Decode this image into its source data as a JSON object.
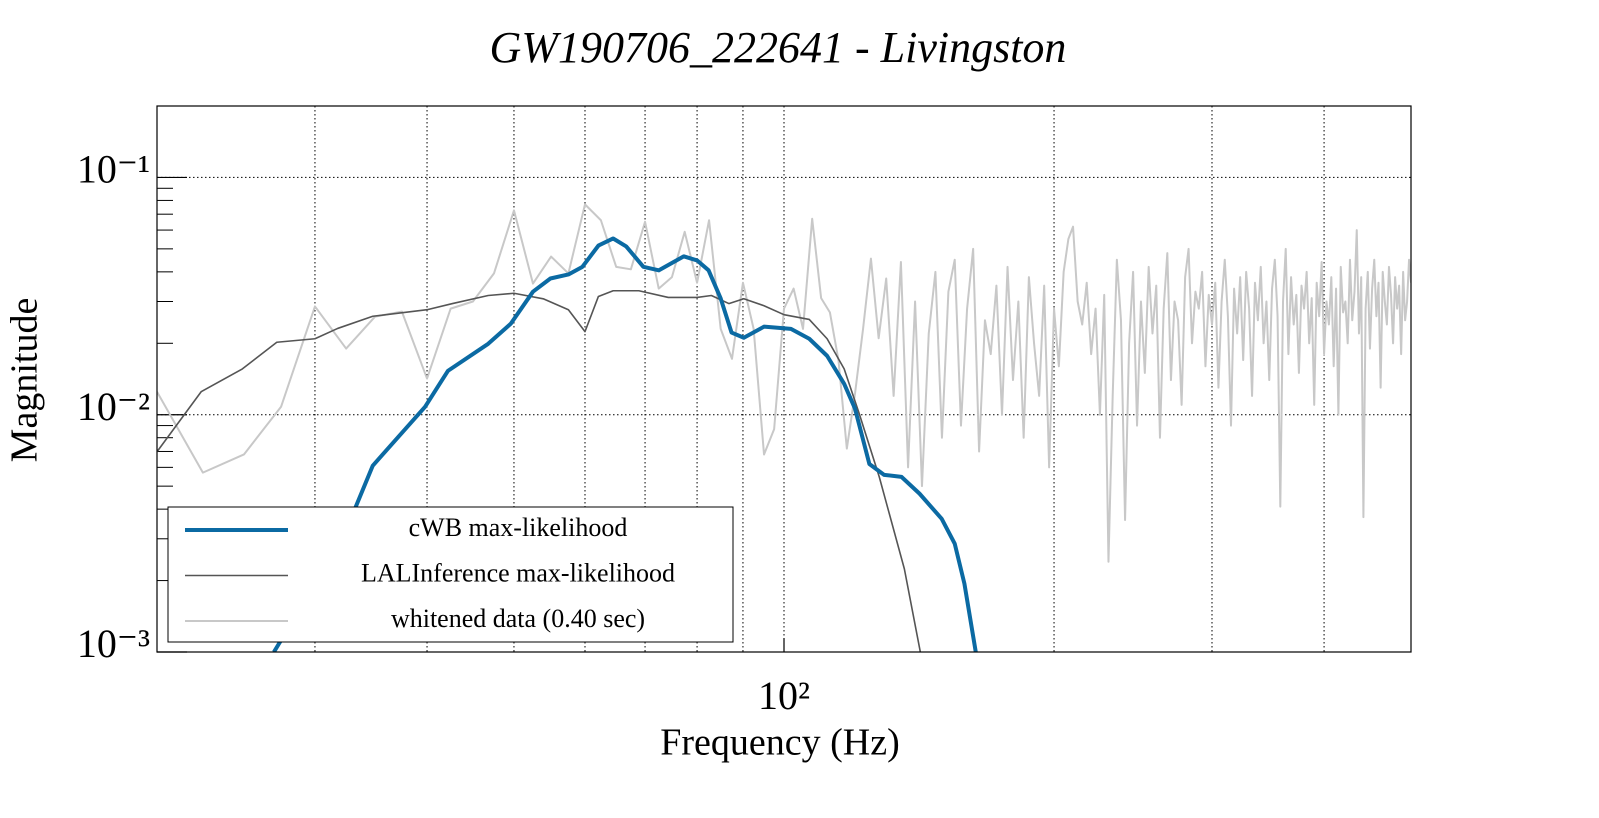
{
  "chart_data": {
    "type": "line",
    "title": "GW190706_222641 - Livingston",
    "xlabel": "Frequency (Hz)",
    "ylabel": "Magnitude",
    "xscale": "log",
    "yscale": "log",
    "xlim": [
      20,
      500
    ],
    "ylim": [
      0.001,
      0.2
    ],
    "xticks": [
      {
        "value": 100,
        "label": "10²"
      }
    ],
    "yticks": [
      {
        "value": 0.001,
        "label": "10⁻³"
      },
      {
        "value": 0.01,
        "label": "10⁻²"
      },
      {
        "value": 0.1,
        "label": "10⁻¹"
      }
    ],
    "xminor": [
      30,
      40,
      50,
      60,
      70,
      80,
      90,
      200,
      300,
      400
    ],
    "yminor": [
      0.002,
      0.003,
      0.004,
      0.005,
      0.006,
      0.007,
      0.008,
      0.009,
      0.02,
      0.03,
      0.04,
      0.05,
      0.06,
      0.07,
      0.08,
      0.09,
      0.2
    ],
    "grid": true,
    "legend": "lower left",
    "series": [
      {
        "name": "cWB max-likelihood",
        "color": "#0b6aa3",
        "width": 4,
        "x": [
          27.0,
          32.2,
          34.8,
          39.8,
          42.2,
          46.8,
          49.6,
          52.5,
          54.9,
          57.5,
          59.6,
          62.1,
          64.5,
          66.7,
          69.7,
          72.5,
          77.3,
          80,
          82.4,
          85.0,
          87.4,
          90.2,
          95.0,
          101.8,
          106.7,
          111.7,
          116.7,
          120,
          124.5,
          129.3,
          135.2,
          141.6,
          149.9,
          155,
          158.9,
          163.6
        ],
        "values": [
          0.001,
          0.003,
          0.0061,
          0.0108,
          0.0153,
          0.0199,
          0.0242,
          0.033,
          0.0375,
          0.039,
          0.042,
          0.0516,
          0.0553,
          0.0512,
          0.042,
          0.0406,
          0.0465,
          0.0447,
          0.0406,
          0.0309,
          0.0222,
          0.0211,
          0.0235,
          0.023,
          0.0209,
          0.0177,
          0.0135,
          0.0106,
          0.0062,
          0.00558,
          0.00547,
          0.00465,
          0.00364,
          0.00286,
          0.00194,
          0.001
        ]
      },
      {
        "name": "LALInference max-likelihood",
        "color": "#555555",
        "width": 1.6,
        "x": [
          20,
          22.4,
          24.9,
          27.2,
          30,
          31.8,
          34.8,
          40,
          42.7,
          46.8,
          50,
          53.9,
          57.5,
          60,
          62.1,
          64.5,
          68.9,
          74.3,
          80,
          83,
          86.8,
          90.2,
          95.0,
          100,
          106.7,
          111.7,
          116.7,
          121.3,
          127.7,
          136.2,
          141.9
        ],
        "values": [
          0.00698,
          0.0125,
          0.0156,
          0.0202,
          0.0209,
          0.0231,
          0.026,
          0.0277,
          0.0294,
          0.0318,
          0.0325,
          0.0308,
          0.0277,
          0.0224,
          0.0315,
          0.0333,
          0.0333,
          0.0312,
          0.0312,
          0.0318,
          0.0294,
          0.0308,
          0.0288,
          0.0264,
          0.0252,
          0.0209,
          0.0156,
          0.0101,
          0.00547,
          0.00224,
          0.001
        ]
      },
      {
        "name": "whitened data (0.40 sec)",
        "color": "#c8c8c8",
        "width": 2,
        "x": [
          20,
          22.5,
          25,
          27.5,
          30,
          32.5,
          35,
          37.5,
          40,
          42.5,
          45,
          47.5,
          50,
          52.5,
          55,
          57.5,
          60,
          62.5,
          65,
          67.5,
          70,
          72.5,
          75,
          77.5,
          80,
          82.5,
          85,
          87.5,
          90,
          92.5,
          95,
          97.5,
          100,
          102.5,
          105,
          107.5,
          110,
          112.5,
          115,
          117.5,
          120,
          122.5,
          125,
          127.5,
          130,
          132.5,
          135,
          137.5,
          140,
          142.5,
          145,
          147.5,
          150,
          152.5,
          155,
          157.5,
          160,
          162.5,
          165,
          167.5,
          170,
          172.5,
          175,
          177.5,
          180,
          182.5,
          185,
          187.5,
          190,
          192.5,
          195,
          197.5,
          200,
          202.5,
          205,
          207.5,
          210,
          212.5,
          215,
          217.5,
          220,
          222.5,
          225,
          227.5,
          230,
          232.5,
          235,
          237.5,
          240,
          242.5,
          245,
          247.5,
          250,
          252.5,
          255,
          257.5,
          260,
          262.5,
          265,
          267.5,
          270,
          272.5,
          275,
          277.5,
          280,
          282.5,
          285,
          287.5,
          290,
          292.5,
          295,
          297.5,
          300,
          302.5,
          305,
          307.5,
          310,
          312.5,
          315,
          317.5,
          320,
          322.5,
          325,
          327.5,
          330,
          332.5,
          335,
          337.5,
          340,
          342.5,
          345,
          347.5,
          350,
          352.5,
          355,
          357.5,
          360,
          362.5,
          365,
          367.5,
          370,
          372.5,
          375,
          377.5,
          380,
          382.5,
          385,
          387.5,
          390,
          392.5,
          395,
          397.5,
          400,
          402.5,
          405,
          407.5,
          410,
          412.5,
          415,
          417.5,
          420,
          422.5,
          425,
          427.5,
          430,
          432.5,
          435,
          437.5,
          440,
          442.5,
          445,
          447.5,
          450,
          452.5,
          455,
          457.5,
          460,
          462.5,
          465,
          467.5,
          470,
          472.5,
          475,
          477.5,
          480,
          482.5,
          485,
          487.5,
          490,
          492.5,
          495,
          497.5,
          500
        ],
        "values": [
          0.0125,
          0.0057,
          0.0068,
          0.0108,
          0.0286,
          0.019,
          0.0259,
          0.0272,
          0.0142,
          0.028,
          0.03,
          0.0394,
          0.0726,
          0.0357,
          0.0464,
          0.0394,
          0.077,
          0.066,
          0.042,
          0.041,
          0.065,
          0.034,
          0.038,
          0.059,
          0.036,
          0.066,
          0.023,
          0.0172,
          0.036,
          0.023,
          0.0068,
          0.0087,
          0.028,
          0.034,
          0.023,
          0.067,
          0.031,
          0.027,
          0.017,
          0.0072,
          0.0123,
          0.023,
          0.0455,
          0.021,
          0.0375,
          0.012,
          0.044,
          0.006,
          0.03,
          0.005,
          0.022,
          0.04,
          0.008,
          0.033,
          0.045,
          0.009,
          0.028,
          0.05,
          0.007,
          0.025,
          0.018,
          0.035,
          0.01,
          0.042,
          0.014,
          0.03,
          0.008,
          0.038,
          0.02,
          0.012,
          0.035,
          0.006,
          0.028,
          0.016,
          0.04,
          0.055,
          0.062,
          0.03,
          0.024,
          0.036,
          0.018,
          0.028,
          0.01,
          0.032,
          0.0024,
          0.012,
          0.045,
          0.025,
          0.0036,
          0.02,
          0.04,
          0.009,
          0.03,
          0.015,
          0.042,
          0.022,
          0.035,
          0.008,
          0.028,
          0.048,
          0.014,
          0.03,
          0.025,
          0.011,
          0.038,
          0.05,
          0.02,
          0.033,
          0.028,
          0.04,
          0.016,
          0.032,
          0.024,
          0.036,
          0.013,
          0.03,
          0.045,
          0.026,
          0.009,
          0.034,
          0.022,
          0.038,
          0.017,
          0.04,
          0.028,
          0.012,
          0.036,
          0.025,
          0.042,
          0.02,
          0.03,
          0.014,
          0.034,
          0.045,
          0.026,
          0.0041,
          0.03,
          0.05,
          0.018,
          0.038,
          0.024,
          0.032,
          0.015,
          0.035,
          0.028,
          0.04,
          0.02,
          0.031,
          0.011,
          0.036,
          0.026,
          0.044,
          0.018,
          0.03,
          0.024,
          0.038,
          0.016,
          0.034,
          0.01,
          0.042,
          0.027,
          0.03,
          0.02,
          0.045,
          0.025,
          0.033,
          0.06,
          0.022,
          0.038,
          0.0037,
          0.028,
          0.04,
          0.019,
          0.034,
          0.045,
          0.026,
          0.036,
          0.013,
          0.04,
          0.03,
          0.024,
          0.042,
          0.032,
          0.02,
          0.038,
          0.028,
          0.035,
          0.018,
          0.04,
          0.025,
          0.03,
          0.045,
          0.036
        ]
      }
    ]
  }
}
